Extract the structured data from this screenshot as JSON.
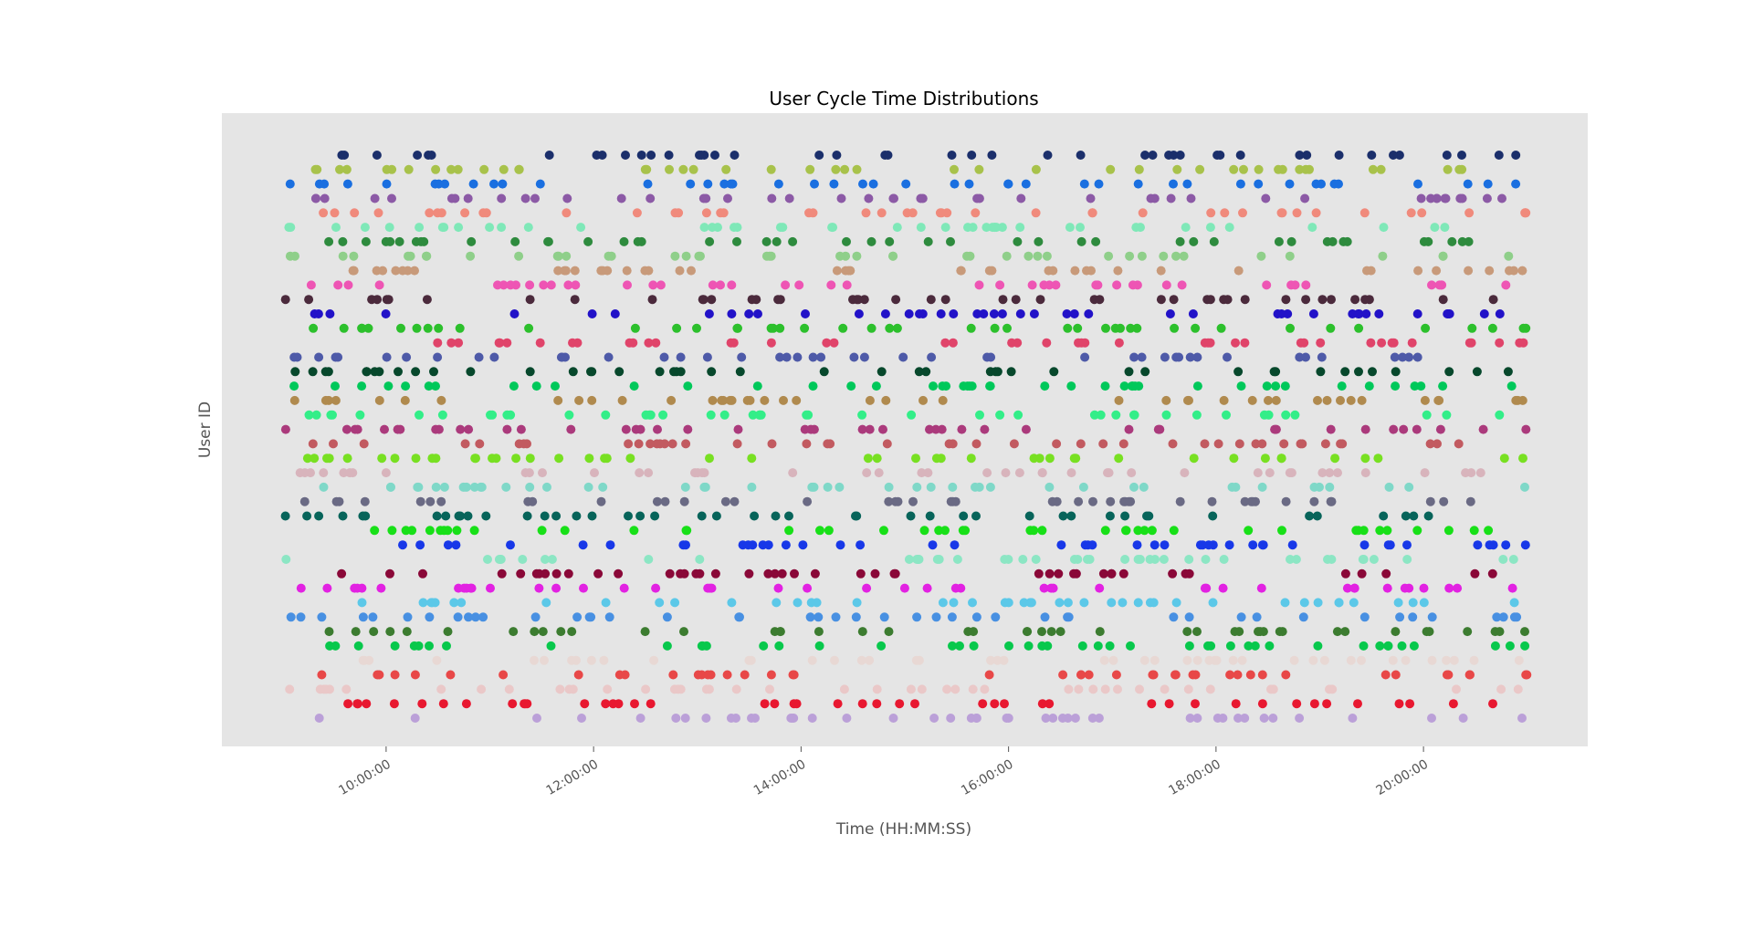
{
  "chart_data": {
    "type": "scatter",
    "title": "User Cycle Time Distributions",
    "xlabel": "Time (HH:MM:SS)",
    "ylabel": "User ID",
    "x_range": [
      "09:00:00",
      "21:00:00"
    ],
    "xlim": [
      "08:25:00",
      "21:35:00"
    ],
    "y_count": 40,
    "x_ticks": [
      "10:00:00",
      "12:00:00",
      "14:00:00",
      "16:00:00",
      "18:00:00",
      "20:00:00"
    ],
    "y_ticks_visible": false,
    "grid": false,
    "background": "#e5e5e5",
    "legend": "none",
    "points_per_user": 45,
    "users": [
      {
        "color": "#1b2f6b"
      },
      {
        "color": "#a8c24b"
      },
      {
        "color": "#1a6fe0"
      },
      {
        "color": "#8c5aa6"
      },
      {
        "color": "#f08a7c"
      },
      {
        "color": "#7fe8b8"
      },
      {
        "color": "#2e8b3e"
      },
      {
        "color": "#8fcf8a"
      },
      {
        "color": "#c89a7a"
      },
      {
        "color": "#ee55b4"
      },
      {
        "color": "#4b2a3c"
      },
      {
        "color": "#2212c8"
      },
      {
        "color": "#2cc02c"
      },
      {
        "color": "#e0446a"
      },
      {
        "color": "#4e5aa8"
      },
      {
        "color": "#07482c"
      },
      {
        "color": "#00c85a"
      },
      {
        "color": "#b08a4e"
      },
      {
        "color": "#33ee88"
      },
      {
        "color": "#ab3a7c"
      },
      {
        "color": "#c25a60"
      },
      {
        "color": "#78e022"
      },
      {
        "color": "#d8b4bc"
      },
      {
        "color": "#7fd8c8"
      },
      {
        "color": "#6a6a84"
      },
      {
        "color": "#07645a"
      },
      {
        "color": "#18e018"
      },
      {
        "color": "#1838e8"
      },
      {
        "color": "#8ce6c4"
      },
      {
        "color": "#8a0838"
      },
      {
        "color": "#e222e2"
      },
      {
        "color": "#5cc8e8"
      },
      {
        "color": "#4890e2"
      },
      {
        "color": "#3c7c30"
      },
      {
        "color": "#08c84c"
      },
      {
        "color": "#e8d8d4"
      },
      {
        "color": "#e84848"
      },
      {
        "color": "#eac8c8"
      },
      {
        "color": "#e81830"
      },
      {
        "color": "#bba0d8"
      }
    ]
  }
}
